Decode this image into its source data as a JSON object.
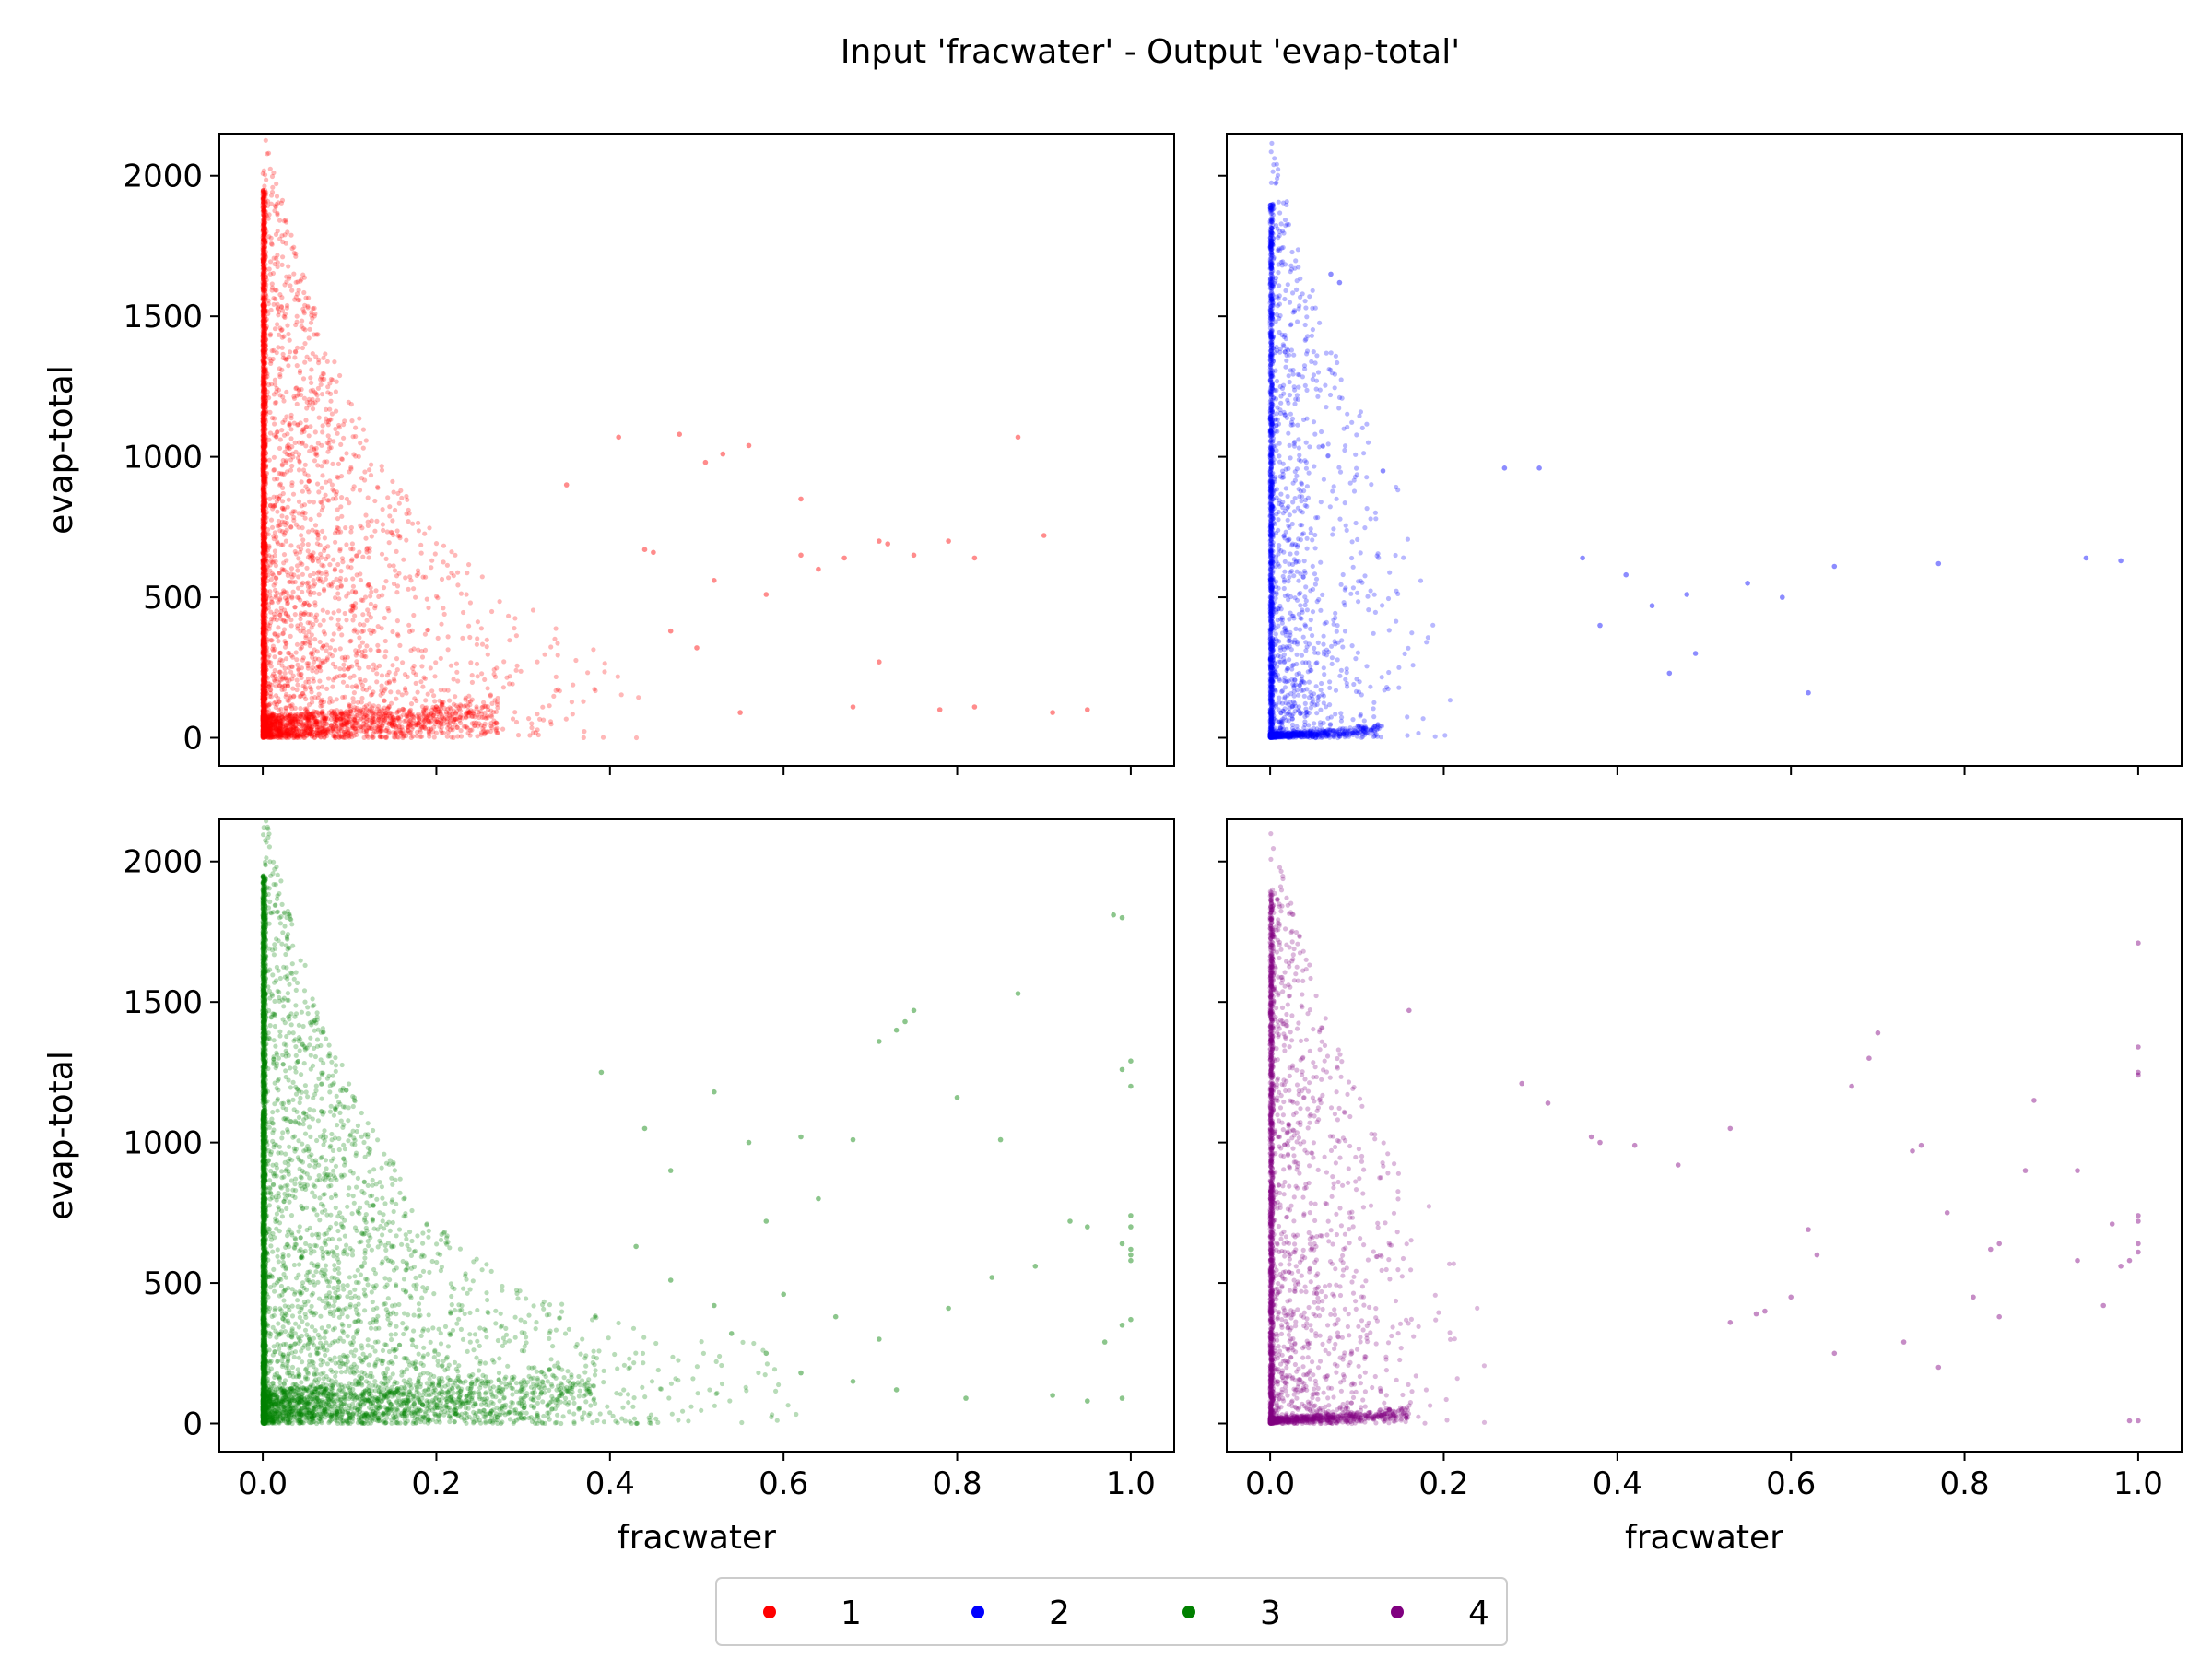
{
  "figure": {
    "title": "Input 'fracwater' - Output 'evap-total'"
  },
  "legend": {
    "placement": "bottom-center",
    "entries": [
      {
        "label": "1",
        "color": "#ff0000"
      },
      {
        "label": "2",
        "color": "#0000ff"
      },
      {
        "label": "3",
        "color": "#008000"
      },
      {
        "label": "4",
        "color": "#800080"
      }
    ]
  },
  "chart_data": [
    {
      "type": "scatter",
      "series_label": "1",
      "color": "#ff0000",
      "xlabel": "",
      "ylabel": "evap-total",
      "xlim": [
        -0.05,
        1.05
      ],
      "ylim": [
        -100,
        2150
      ],
      "xticks": [],
      "yticks": [
        "0",
        "500",
        "1000",
        "1500",
        "2000"
      ],
      "cloud": {
        "count": 5200,
        "seed": 11,
        "xscale": 0.085,
        "ymax": 1950,
        "floor": 80
      },
      "points": [
        [
          0.35,
          900
        ],
        [
          0.41,
          1070
        ],
        [
          0.48,
          1080
        ],
        [
          0.51,
          980
        ],
        [
          0.53,
          1010
        ],
        [
          0.56,
          1040
        ],
        [
          0.62,
          850
        ],
        [
          0.67,
          640
        ],
        [
          0.71,
          700
        ],
        [
          0.72,
          690
        ],
        [
          0.75,
          650
        ],
        [
          0.79,
          700
        ],
        [
          0.82,
          640
        ],
        [
          0.87,
          1070
        ],
        [
          0.9,
          720
        ],
        [
          0.82,
          110
        ],
        [
          0.78,
          100
        ],
        [
          0.91,
          90
        ],
        [
          0.95,
          100
        ],
        [
          0.68,
          110
        ],
        [
          0.55,
          90
        ],
        [
          0.45,
          660
        ],
        [
          0.44,
          670
        ],
        [
          0.62,
          650
        ],
        [
          0.64,
          600
        ],
        [
          0.58,
          510
        ],
        [
          0.47,
          380
        ],
        [
          0.5,
          320
        ],
        [
          0.71,
          270
        ],
        [
          0.52,
          560
        ]
      ]
    },
    {
      "type": "scatter",
      "series_label": "2",
      "color": "#0000ff",
      "xlabel": "",
      "ylabel": "",
      "xlim": [
        -0.05,
        1.05
      ],
      "ylim": [
        -100,
        2150
      ],
      "xticks": [],
      "yticks": [],
      "cloud": {
        "count": 2600,
        "seed": 23,
        "xscale": 0.04,
        "ymax": 1900,
        "floor": 15
      },
      "points": [
        [
          0.08,
          1620
        ],
        [
          0.07,
          1650
        ],
        [
          0.13,
          950
        ],
        [
          0.27,
          960
        ],
        [
          0.31,
          960
        ],
        [
          0.36,
          640
        ],
        [
          0.41,
          580
        ],
        [
          0.44,
          470
        ],
        [
          0.48,
          510
        ],
        [
          0.55,
          550
        ],
        [
          0.59,
          500
        ],
        [
          0.65,
          610
        ],
        [
          0.77,
          620
        ],
        [
          0.94,
          640
        ],
        [
          0.98,
          630
        ],
        [
          0.62,
          160
        ],
        [
          0.49,
          300
        ],
        [
          0.46,
          230
        ],
        [
          0.38,
          400
        ]
      ]
    },
    {
      "type": "scatter",
      "series_label": "3",
      "color": "#008000",
      "xlabel": "fracwater",
      "ylabel": "evap-total",
      "xlim": [
        -0.05,
        1.05
      ],
      "ylim": [
        -100,
        2150
      ],
      "xticks": [
        "0.0",
        "0.2",
        "0.4",
        "0.6",
        "0.8",
        "1.0"
      ],
      "yticks": [
        "0",
        "500",
        "1000",
        "1500",
        "2000"
      ],
      "cloud": {
        "count": 6200,
        "seed": 37,
        "xscale": 0.12,
        "ymax": 1950,
        "floor": 120
      },
      "points": [
        [
          0.99,
          1800
        ],
        [
          0.98,
          1810
        ],
        [
          1.0,
          1290
        ],
        [
          0.99,
          1260
        ],
        [
          1.0,
          1200
        ],
        [
          0.87,
          1530
        ],
        [
          0.74,
          1430
        ],
        [
          0.73,
          1400
        ],
        [
          0.75,
          1470
        ],
        [
          0.8,
          1160
        ],
        [
          0.71,
          1360
        ],
        [
          0.56,
          1000
        ],
        [
          0.62,
          1020
        ],
        [
          0.68,
          1010
        ],
        [
          0.85,
          1010
        ],
        [
          1.0,
          740
        ],
        [
          1.0,
          700
        ],
        [
          1.0,
          620
        ],
        [
          1.0,
          600
        ],
        [
          1.0,
          580
        ],
        [
          0.99,
          640
        ],
        [
          0.95,
          700
        ],
        [
          0.93,
          720
        ],
        [
          1.0,
          370
        ],
        [
          0.99,
          350
        ],
        [
          0.97,
          290
        ],
        [
          0.99,
          90
        ],
        [
          0.95,
          80
        ],
        [
          0.91,
          100
        ],
        [
          0.81,
          90
        ],
        [
          0.73,
          120
        ],
        [
          0.68,
          150
        ],
        [
          0.62,
          180
        ],
        [
          0.58,
          250
        ],
        [
          0.54,
          320
        ],
        [
          0.71,
          300
        ],
        [
          0.66,
          380
        ],
        [
          0.79,
          410
        ],
        [
          0.84,
          520
        ],
        [
          0.89,
          560
        ],
        [
          0.6,
          460
        ],
        [
          0.52,
          420
        ],
        [
          0.47,
          510
        ],
        [
          0.43,
          630
        ],
        [
          0.58,
          720
        ],
        [
          0.64,
          800
        ],
        [
          0.47,
          900
        ],
        [
          0.52,
          1180
        ],
        [
          0.39,
          1250
        ],
        [
          0.44,
          1050
        ]
      ]
    },
    {
      "type": "scatter",
      "series_label": "4",
      "color": "#800080",
      "xlabel": "fracwater",
      "ylabel": "",
      "xlim": [
        -0.05,
        1.05
      ],
      "ylim": [
        -100,
        2150
      ],
      "xticks": [
        "0.0",
        "0.2",
        "0.4",
        "0.6",
        "0.8",
        "1.0"
      ],
      "yticks": [],
      "cloud": {
        "count": 2900,
        "seed": 51,
        "xscale": 0.05,
        "ymax": 1900,
        "floor": 20
      },
      "points": [
        [
          1.0,
          1710
        ],
        [
          1.0,
          1340
        ],
        [
          1.0,
          1250
        ],
        [
          1.0,
          1240
        ],
        [
          1.0,
          740
        ],
        [
          1.0,
          720
        ],
        [
          1.0,
          640
        ],
        [
          1.0,
          610
        ],
        [
          1.0,
          10
        ],
        [
          0.99,
          10
        ],
        [
          0.99,
          580
        ],
        [
          0.98,
          560
        ],
        [
          0.97,
          710
        ],
        [
          0.93,
          580
        ],
        [
          0.96,
          420
        ],
        [
          0.88,
          1150
        ],
        [
          0.83,
          620
        ],
        [
          0.84,
          640
        ],
        [
          0.81,
          450
        ],
        [
          0.7,
          1390
        ],
        [
          0.69,
          1300
        ],
        [
          0.67,
          1200
        ],
        [
          0.75,
          990
        ],
        [
          0.74,
          970
        ],
        [
          0.56,
          390
        ],
        [
          0.53,
          1050
        ],
        [
          0.42,
          990
        ],
        [
          0.38,
          1000
        ],
        [
          0.37,
          1020
        ],
        [
          0.47,
          920
        ],
        [
          0.53,
          360
        ],
        [
          0.6,
          450
        ],
        [
          0.63,
          600
        ],
        [
          0.73,
          290
        ],
        [
          0.87,
          900
        ],
        [
          0.78,
          750
        ],
        [
          0.32,
          1140
        ],
        [
          0.29,
          1210
        ],
        [
          0.16,
          1470
        ],
        [
          0.57,
          400
        ],
        [
          0.65,
          250
        ],
        [
          0.77,
          200
        ],
        [
          0.84,
          380
        ],
        [
          0.62,
          690
        ],
        [
          0.93,
          900
        ]
      ]
    }
  ]
}
